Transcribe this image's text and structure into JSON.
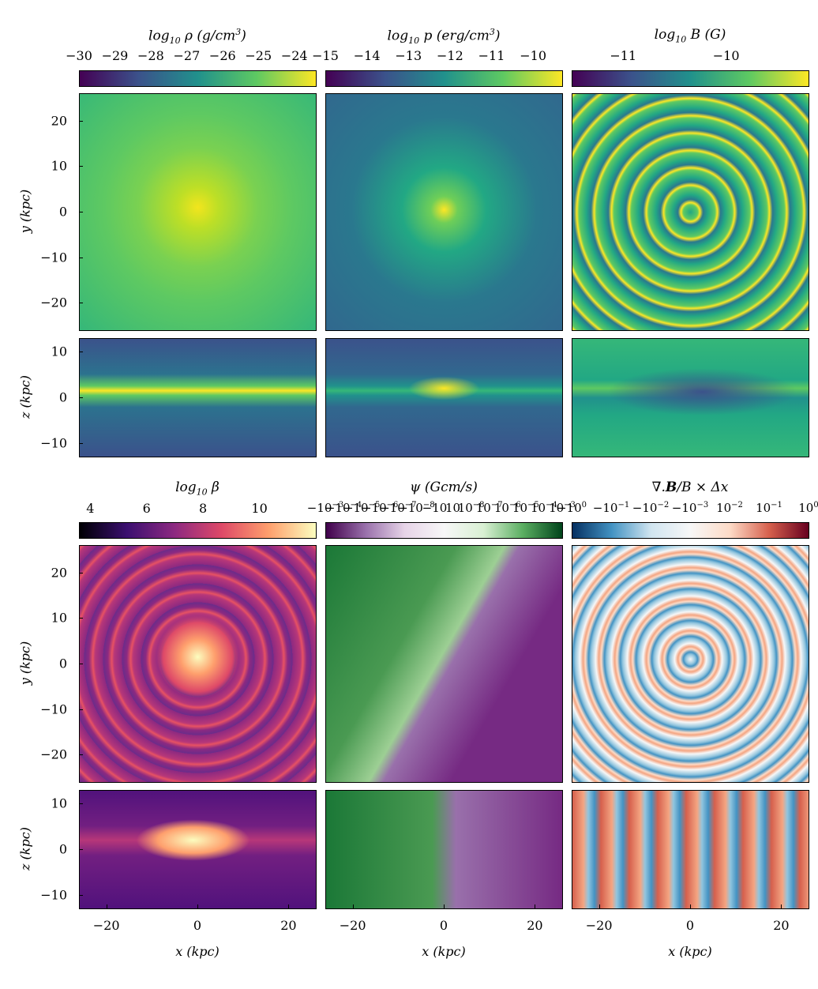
{
  "colors": {
    "viridis": [
      "#440154",
      "#3b528b",
      "#21918c",
      "#5ec962",
      "#fde725"
    ],
    "magma": [
      "#000004",
      "#3b0f70",
      "#8c2981",
      "#de4968",
      "#fe9f6d",
      "#fcfdbf"
    ],
    "prgn": [
      "#40004b",
      "#9970ab",
      "#e7d4e8",
      "#f7f7f7",
      "#d9f0d3",
      "#5aae61",
      "#00441b"
    ],
    "rdbu": [
      "#053061",
      "#4393c3",
      "#d1e5f0",
      "#f7f7f7",
      "#fddbc7",
      "#d6604d",
      "#67001f"
    ]
  },
  "labels": {
    "y_kpc": "y (kpc)",
    "z_kpc": "z (kpc)",
    "x_kpc": "x (kpc)"
  },
  "chart_data": [
    {
      "type": "heatmap",
      "panel": "density",
      "title": "log10 ρ (g/cm³)",
      "colorbar": {
        "ticks": [
          "−30",
          "−29",
          "−28",
          "−27",
          "−26",
          "−25",
          "−24"
        ],
        "range": [
          -30,
          -23.4
        ],
        "colormap": "viridis"
      },
      "face_on": {
        "x_range": [
          -26,
          26
        ],
        "y_range": [
          -26,
          26
        ],
        "y_ticks": [
          "20",
          "10",
          "0",
          "−10",
          "−20"
        ]
      },
      "edge_on": {
        "x_range": [
          -26,
          26
        ],
        "z_range": [
          -13,
          13
        ],
        "z_ticks": [
          "10",
          "0",
          "−10"
        ]
      }
    },
    {
      "type": "heatmap",
      "panel": "pressure",
      "title": "log10 p (erg/cm³)",
      "colorbar": {
        "ticks": [
          "−15",
          "−14",
          "−13",
          "−12",
          "−11",
          "−10"
        ],
        "range": [
          -15,
          -9.3
        ],
        "colormap": "viridis"
      }
    },
    {
      "type": "heatmap",
      "panel": "field",
      "title": "log10 B (G)",
      "colorbar": {
        "ticks": [
          "−11",
          "−10"
        ],
        "range": [
          -11.5,
          -9.2
        ],
        "colormap": "viridis"
      }
    },
    {
      "type": "heatmap",
      "panel": "beta",
      "title": "log10 β",
      "colorbar": {
        "ticks": [
          "4",
          "6",
          "8",
          "10"
        ],
        "range": [
          3.6,
          12
        ],
        "colormap": "magma"
      },
      "x_ticks": [
        "−20",
        "0",
        "20"
      ]
    },
    {
      "type": "heatmap",
      "panel": "psi",
      "title": "ψ (Gcm/s)",
      "colorbar": {
        "ticks": [
          "−10",
          "−10",
          "−10",
          "−10",
          "−10",
          "−10",
          "−10",
          "10",
          "10",
          "10",
          "10",
          "10",
          "10",
          "10"
        ],
        "range": [
          -0.001,
          0.001
        ],
        "scale": "symlog",
        "colormap": "PRGn"
      },
      "x_ticks": [
        "−20",
        "0",
        "20"
      ]
    },
    {
      "type": "heatmap",
      "panel": "divb",
      "title": "∇.B/B × Δx",
      "colorbar": {
        "ticks": [
          "−10",
          "−10",
          "−10",
          "−10",
          "10",
          "10",
          "10"
        ],
        "range": [
          -1,
          1
        ],
        "scale": "symlog",
        "colormap": "RdBu_r"
      },
      "x_ticks": [
        "−20",
        "0",
        "20"
      ]
    }
  ]
}
